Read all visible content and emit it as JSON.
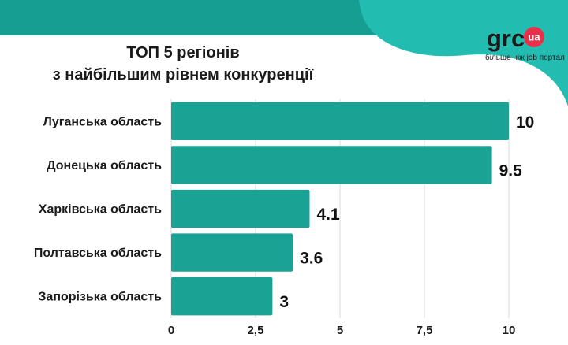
{
  "colors": {
    "band": "#179e93",
    "blob": "#22bcb0",
    "bar": "#1aa394",
    "grid": "#d9d9d9",
    "badge": "#e8304a"
  },
  "logo": {
    "brand": "grc",
    "badge": "ua",
    "tagline": "більше ніж job портал"
  },
  "chart_data": {
    "type": "bar",
    "orientation": "horizontal",
    "title": [
      "ТОП 5 регіонів",
      "з найбільшим рівнем конкуренції"
    ],
    "categories": [
      "Луганська область",
      "Донецька область",
      "Харківська область",
      "Полтавська область",
      "Запорізька область"
    ],
    "values": [
      10,
      9.5,
      4.1,
      3.6,
      3
    ],
    "value_labels": [
      "10",
      "9.5",
      "4.1",
      "3.6",
      "3"
    ],
    "xlim": [
      0,
      10
    ],
    "x_ticks": [
      0,
      2.5,
      5,
      7.5,
      10
    ],
    "x_tick_labels": [
      "0",
      "2,5",
      "5",
      "7,5",
      "10"
    ],
    "grid": true
  }
}
